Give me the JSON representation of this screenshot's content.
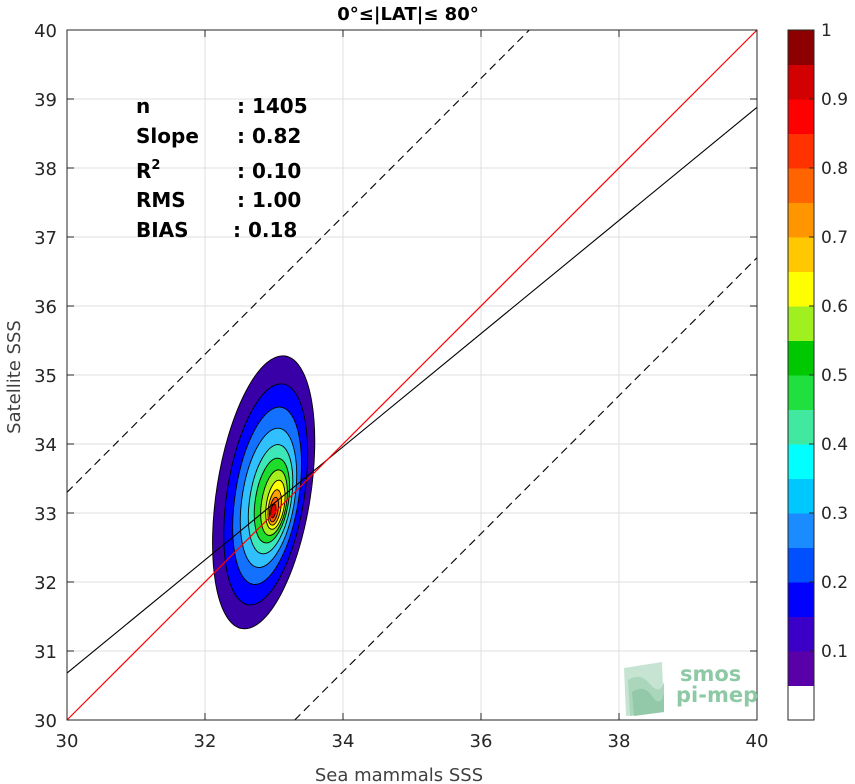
{
  "chart_data": {
    "type": "contour",
    "title": "0°≤|LAT|≤ 80°",
    "xlabel": "Sea mammals SSS",
    "ylabel": "Satellite SSS",
    "xlim": [
      30,
      40
    ],
    "ylim": [
      30,
      40
    ],
    "xticks": [
      "30",
      "32",
      "34",
      "36",
      "38",
      "40"
    ],
    "yticks": [
      "30",
      "31",
      "32",
      "33",
      "34",
      "35",
      "36",
      "37",
      "38",
      "39",
      "40"
    ],
    "grid": true,
    "stats": [
      {
        "label": "n",
        "value": ": 1405"
      },
      {
        "label": "Slope",
        "value": ": 0.82"
      },
      {
        "label": "R",
        "sup": "2",
        "value": ": 0.10"
      },
      {
        "label": "RMS",
        "value": ": 1.00"
      },
      {
        "label": "BIAS",
        "value": ": 0.18"
      }
    ],
    "one_to_one_line": {
      "color": "#ff0000",
      "from": [
        30,
        30
      ],
      "to": [
        40,
        40
      ]
    },
    "regression_line": {
      "color": "#000000",
      "slope": 0.82,
      "intercept": 6.08
    },
    "bounds_lines": {
      "style": "dashed",
      "offset": 3.3
    },
    "contours": [
      {
        "level": 0.05,
        "color": "#3a00a8",
        "cx": 32.85,
        "cy": 33.3,
        "rx": 0.68,
        "ry": 2.0
      },
      {
        "level": 0.15,
        "color": "#0000ff",
        "cx": 32.88,
        "cy": 33.27,
        "rx": 0.56,
        "ry": 1.62
      },
      {
        "level": 0.25,
        "color": "#1470ff",
        "cx": 32.9,
        "cy": 33.25,
        "rx": 0.46,
        "ry": 1.3
      },
      {
        "level": 0.35,
        "color": "#30c0ff",
        "cx": 32.92,
        "cy": 33.22,
        "rx": 0.38,
        "ry": 1.02
      },
      {
        "level": 0.45,
        "color": "#3ce8b8",
        "cx": 32.95,
        "cy": 33.2,
        "rx": 0.3,
        "ry": 0.8
      },
      {
        "level": 0.55,
        "color": "#1edc2c",
        "cx": 32.97,
        "cy": 33.18,
        "rx": 0.24,
        "ry": 0.62
      },
      {
        "level": 0.6,
        "color": "#a6ee1e",
        "cx": 33.0,
        "cy": 33.15,
        "rx": 0.18,
        "ry": 0.48
      },
      {
        "level": 0.65,
        "color": "#ffff00",
        "cx": 33.02,
        "cy": 33.12,
        "rx": 0.13,
        "ry": 0.36
      },
      {
        "level": 0.72,
        "color": "#ffa000",
        "cx": 33.01,
        "cy": 33.08,
        "rx": 0.09,
        "ry": 0.26
      },
      {
        "level": 0.82,
        "color": "#ff5a00",
        "cx": 33.0,
        "cy": 33.05,
        "rx": 0.06,
        "ry": 0.18
      },
      {
        "level": 0.92,
        "color": "#e60000",
        "cx": 32.99,
        "cy": 33.03,
        "rx": 0.035,
        "ry": 0.1
      }
    ],
    "colorbar": {
      "range": [
        0,
        1
      ],
      "ticks": [
        "0.1",
        "0.2",
        "0.3",
        "0.4",
        "0.5",
        "0.6",
        "0.7",
        "0.8",
        "0.9",
        "1"
      ],
      "colors": [
        "#ffffff",
        "#5a00a8",
        "#3a00c8",
        "#0000ff",
        "#0050ff",
        "#1a8cff",
        "#00c8ff",
        "#00ffff",
        "#40e8a0",
        "#20e040",
        "#00c800",
        "#a0f020",
        "#ffff00",
        "#ffc800",
        "#ff9600",
        "#ff6400",
        "#ff3200",
        "#ff0000",
        "#d20000",
        "#8c0000"
      ]
    },
    "logo": {
      "line1": "smos",
      "line2": "pi-mep"
    }
  }
}
